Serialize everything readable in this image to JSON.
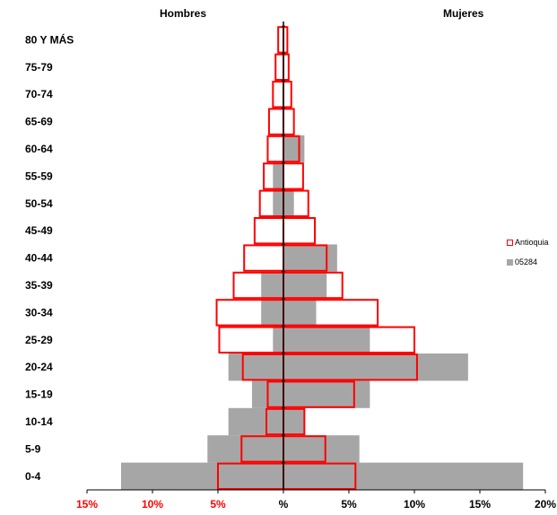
{
  "chart_data": {
    "type": "bar",
    "orientation": "horizontal-pyramid",
    "left_label": "Hombres",
    "right_label": "Mujeres",
    "categories": [
      "0-4",
      "5-9",
      "10-14",
      "15-19",
      "20-24",
      "25-29",
      "30-34",
      "35-39",
      "40-44",
      "45-49",
      "50-54",
      "55-59",
      "60-64",
      "65-69",
      "70-74",
      "75-79",
      "80 Y MÁS"
    ],
    "series": [
      {
        "name": "Antioquia",
        "style": "outline",
        "color": "#ff0000",
        "hombres": [
          5.0,
          3.2,
          1.3,
          1.2,
          3.1,
          4.9,
          5.1,
          3.8,
          3.0,
          2.2,
          1.8,
          1.5,
          1.2,
          1.1,
          0.8,
          0.6,
          0.4
        ],
        "mujeres": [
          5.5,
          3.2,
          1.6,
          5.4,
          10.2,
          10.0,
          7.2,
          4.5,
          3.3,
          2.4,
          1.9,
          1.5,
          1.2,
          0.8,
          0.6,
          0.4,
          0.3
        ]
      },
      {
        "name": "05284",
        "style": "fill",
        "color": "#a6a6a6",
        "hombres": [
          12.4,
          5.8,
          4.2,
          2.4,
          4.2,
          0.8,
          1.7,
          1.7,
          0.0,
          0.0,
          0.8,
          0.8,
          0.0,
          0.0,
          0.0,
          0.0,
          0.0
        ],
        "mujeres": [
          18.3,
          5.8,
          1.6,
          6.6,
          14.1,
          6.6,
          2.5,
          3.3,
          4.1,
          0.0,
          0.8,
          0.0,
          1.6,
          0.0,
          0.0,
          0.0,
          0.0
        ]
      }
    ],
    "x_ticks": [
      {
        "value": -15,
        "label": "15%",
        "color": "#ff0000"
      },
      {
        "value": -10,
        "label": "10%",
        "color": "#ff0000"
      },
      {
        "value": -5,
        "label": "5%",
        "color": "#ff0000"
      },
      {
        "value": 0,
        "label": "%",
        "color": "#000000"
      },
      {
        "value": 5,
        "label": "5%",
        "color": "#000000"
      },
      {
        "value": 10,
        "label": "10%",
        "color": "#000000"
      },
      {
        "value": 15,
        "label": "15%",
        "color": "#000000"
      },
      {
        "value": 20,
        "label": "20%",
        "color": "#000000"
      }
    ],
    "xlim": [
      -15,
      20
    ],
    "legend_position": "right"
  }
}
